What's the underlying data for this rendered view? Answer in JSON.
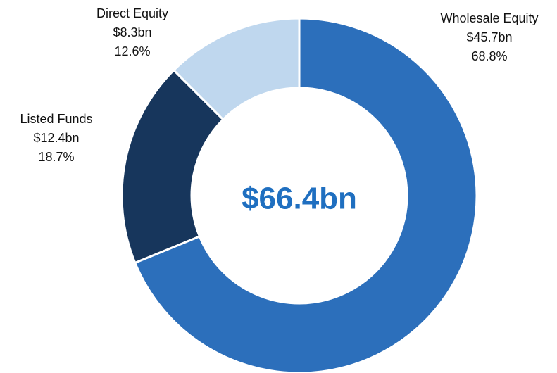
{
  "chart_data": {
    "type": "donut",
    "categories": [
      "Wholesale Equity",
      "Listed Funds",
      "Direct Equity"
    ],
    "values": [
      45.7,
      12.4,
      8.3
    ],
    "value_labels": [
      "$45.7bn",
      "$12.4bn",
      "$8.3bn"
    ],
    "percents": [
      68.8,
      18.7,
      12.6
    ],
    "percent_labels": [
      "68.8%",
      "18.7%",
      "12.6%"
    ],
    "colors": [
      "#2c6fbb",
      "#17365c",
      "#bfd7ee"
    ],
    "center_label": "$66.4bn"
  }
}
